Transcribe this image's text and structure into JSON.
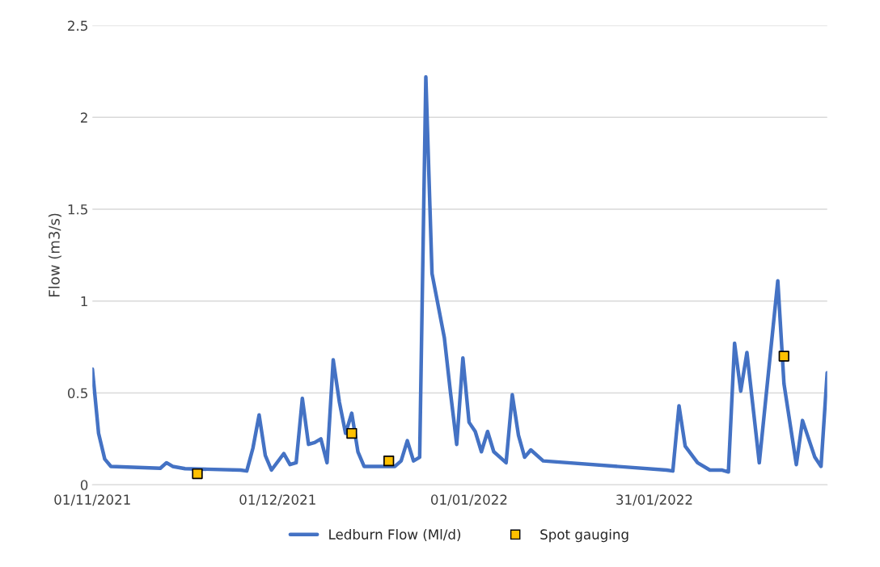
{
  "chart_data": {
    "type": "line",
    "ylabel": "Flow (m3/s)",
    "xlim": [
      "2021-11-01",
      "2022-02-28"
    ],
    "xticks": [
      {
        "value": "2021-11-01",
        "label": "01/11/2021"
      },
      {
        "value": "2021-12-01",
        "label": "01/12/2021"
      },
      {
        "value": "2022-01-01",
        "label": "01/01/2022"
      },
      {
        "value": "2022-01-31",
        "label": "31/01/2022"
      }
    ],
    "ylim": [
      0,
      2.5
    ],
    "yticks": [
      0,
      0.5,
      1,
      1.5,
      2,
      2.5
    ],
    "grid": "y",
    "legend": "bottom",
    "series": [
      {
        "name": "Ledburn Flow (Ml/d)",
        "color": "#4472c4",
        "marker": "none",
        "line_style": "solid",
        "x": [
          "2021-11-01",
          "2021-11-02",
          "2021-11-03",
          "2021-11-04",
          "2021-11-12",
          "2021-11-13",
          "2021-11-14",
          "2021-11-16",
          "2021-11-25",
          "2021-11-26",
          "2021-11-27",
          "2021-11-28",
          "2021-11-29",
          "2021-11-30",
          "2021-12-02",
          "2021-12-03",
          "2021-12-04",
          "2021-12-05",
          "2021-12-06",
          "2021-12-07",
          "2021-12-08",
          "2021-12-09",
          "2021-12-10",
          "2021-12-11",
          "2021-12-12",
          "2021-12-13",
          "2021-12-14",
          "2021-12-15",
          "2021-12-20",
          "2021-12-21",
          "2021-12-22",
          "2021-12-23",
          "2021-12-24",
          "2021-12-25",
          "2021-12-26",
          "2021-12-28",
          "2021-12-29",
          "2021-12-30",
          "2021-12-31",
          "2022-01-01",
          "2022-01-02",
          "2022-01-03",
          "2022-01-04",
          "2022-01-05",
          "2022-01-07",
          "2022-01-08",
          "2022-01-09",
          "2022-01-10",
          "2022-01-11",
          "2022-01-13",
          "2022-02-02",
          "2022-02-03",
          "2022-02-04",
          "2022-02-05",
          "2022-02-07",
          "2022-02-09",
          "2022-02-11",
          "2022-02-12",
          "2022-02-13",
          "2022-02-14",
          "2022-02-15",
          "2022-02-17",
          "2022-02-20",
          "2022-02-21",
          "2022-02-23",
          "2022-02-24",
          "2022-02-26",
          "2022-02-27",
          "2022-02-28"
        ],
        "values": [
          0.63,
          0.28,
          0.14,
          0.1,
          0.09,
          0.12,
          0.1,
          0.088,
          0.08,
          0.075,
          0.2,
          0.38,
          0.16,
          0.08,
          0.17,
          0.11,
          0.12,
          0.47,
          0.22,
          0.23,
          0.25,
          0.12,
          0.68,
          0.45,
          0.28,
          0.39,
          0.18,
          0.1,
          0.1,
          0.13,
          0.24,
          0.13,
          0.15,
          2.22,
          1.15,
          0.8,
          0.5,
          0.22,
          0.69,
          0.34,
          0.29,
          0.18,
          0.29,
          0.18,
          0.12,
          0.49,
          0.27,
          0.15,
          0.19,
          0.13,
          0.08,
          0.075,
          0.43,
          0.21,
          0.12,
          0.08,
          0.08,
          0.07,
          0.77,
          0.51,
          0.72,
          0.12,
          1.11,
          0.55,
          0.11,
          0.35,
          0.15,
          0.1,
          0.61
        ]
      },
      {
        "name": "Spot gauging",
        "type": "scatter",
        "color": "#ffc000",
        "marker": "square",
        "x": [
          "2021-11-18",
          "2021-12-13",
          "2021-12-19",
          "2022-02-21"
        ],
        "values": [
          0.06,
          0.28,
          0.13,
          0.7
        ]
      }
    ]
  }
}
